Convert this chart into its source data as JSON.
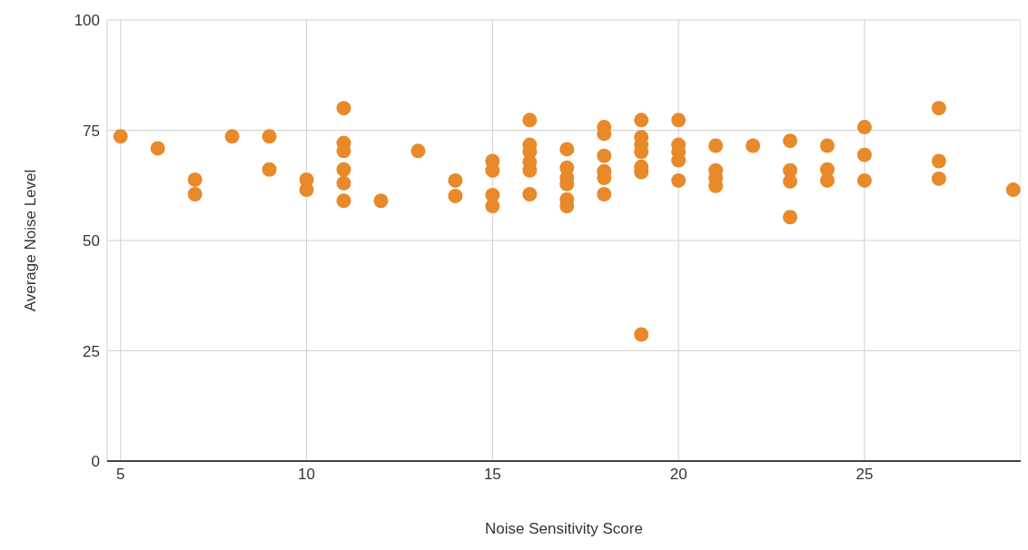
{
  "chart_data": {
    "type": "scatter",
    "xlabel": "Noise Sensitivity Score",
    "ylabel": "Average Noise Level",
    "x": [
      5,
      6,
      7,
      7,
      8,
      9,
      9,
      10,
      10,
      11,
      11,
      11,
      11,
      11,
      11,
      12,
      13,
      14,
      14,
      15,
      15,
      15,
      15,
      16,
      16,
      16,
      16,
      16,
      16,
      17,
      17,
      17,
      17,
      17,
      17,
      18,
      18,
      18,
      18,
      18,
      18,
      19,
      19,
      19,
      19,
      19,
      19,
      19,
      20,
      20,
      20,
      20,
      20,
      21,
      21,
      21,
      21,
      22,
      23,
      23,
      23,
      23,
      24,
      24,
      24,
      25,
      25,
      25,
      27,
      27,
      27,
      29
    ],
    "series": [
      {
        "color": "#e8892a",
        "values": [
          73.6,
          70.9,
          63.8,
          60.5,
          73.6,
          73.6,
          66.1,
          63.8,
          61.5,
          80,
          72.1,
          70.3,
          66.1,
          63,
          59,
          59,
          70.3,
          63.6,
          60.1,
          68,
          65.9,
          60.3,
          57.8,
          77.3,
          71.7,
          70.1,
          67.8,
          65.9,
          60.5,
          70.7,
          66.5,
          64.2,
          62.8,
          59.3,
          57.8,
          75.7,
          74.2,
          69.2,
          65.7,
          64.2,
          60.5,
          77.3,
          73.4,
          71.7,
          70.1,
          66.7,
          65.5,
          28.7,
          77.3,
          71.7,
          70.1,
          68.2,
          63.6,
          71.5,
          65.9,
          64.2,
          62.4,
          71.5,
          72.6,
          65.9,
          63.4,
          55.3,
          71.5,
          66.1,
          63.6,
          75.7,
          69.4,
          63.6,
          80,
          68,
          64,
          61.5
        ]
      }
    ],
    "xlim": [
      4.64,
      29.2
    ],
    "xticks": [
      5,
      10,
      15,
      20,
      25
    ],
    "ylim": [
      0,
      100
    ],
    "yticks": [
      0,
      25,
      50,
      75,
      100
    ],
    "grid": true,
    "marker": "circle"
  }
}
